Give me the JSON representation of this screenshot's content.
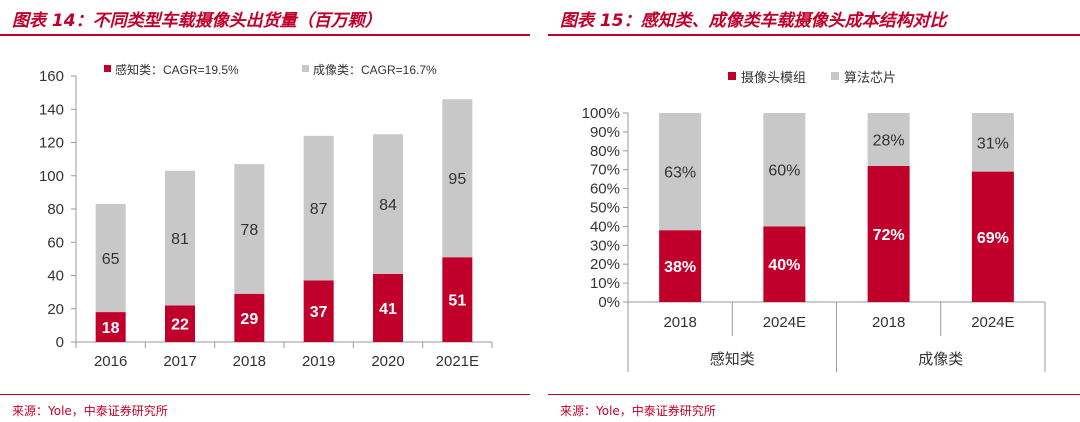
{
  "figures": [
    {
      "title": "图表 14：不同类型车载摄像头出货量（百万颗）",
      "source": "来源：Yole，中泰证券研究所"
    },
    {
      "title": "图表 15：感知类、成像类车载摄像头成本结构对比",
      "source": "来源：Yole，中泰证券研究所"
    }
  ],
  "colors": {
    "red": "#c0002a",
    "gray": "#c8c8c8",
    "axis": "#999999",
    "text": "#333333"
  },
  "chart_data": [
    {
      "type": "bar",
      "stacked": true,
      "categories": [
        "2016",
        "2017",
        "2018",
        "2019",
        "2020",
        "2021E"
      ],
      "series": [
        {
          "name": "感知类：CAGR=19.5%",
          "color": "#c0002a",
          "values": [
            18,
            22,
            29,
            37,
            41,
            51
          ]
        },
        {
          "name": "成像类：CAGR=16.7%",
          "color": "#c8c8c8",
          "values": [
            65,
            81,
            78,
            87,
            84,
            95
          ]
        }
      ],
      "ylim": [
        0,
        160
      ],
      "yticks": [
        "0",
        "20",
        "40",
        "60",
        "80",
        "100",
        "120",
        "140",
        "160"
      ],
      "grid": false,
      "legend": "top"
    },
    {
      "type": "bar",
      "stacked": true,
      "percent": true,
      "categories": [
        "2018",
        "2024E",
        "2018",
        "2024E"
      ],
      "groups": [
        "感知类",
        "成像类"
      ],
      "series": [
        {
          "name": "摄像头模组",
          "color": "#c0002a",
          "values": [
            38,
            40,
            72,
            69
          ],
          "labels": [
            "38%",
            "40%",
            "72%",
            "69%"
          ]
        },
        {
          "name": "算法芯片",
          "color": "#c8c8c8",
          "values": [
            63,
            60,
            28,
            31
          ],
          "labels": [
            "63%",
            "60%",
            "28%",
            "31%"
          ]
        }
      ],
      "ylim": [
        0,
        100
      ],
      "yticks": [
        "0%",
        "10%",
        "20%",
        "30%",
        "40%",
        "50%",
        "60%",
        "70%",
        "80%",
        "90%",
        "100%"
      ],
      "grid": false,
      "legend": "top"
    }
  ]
}
